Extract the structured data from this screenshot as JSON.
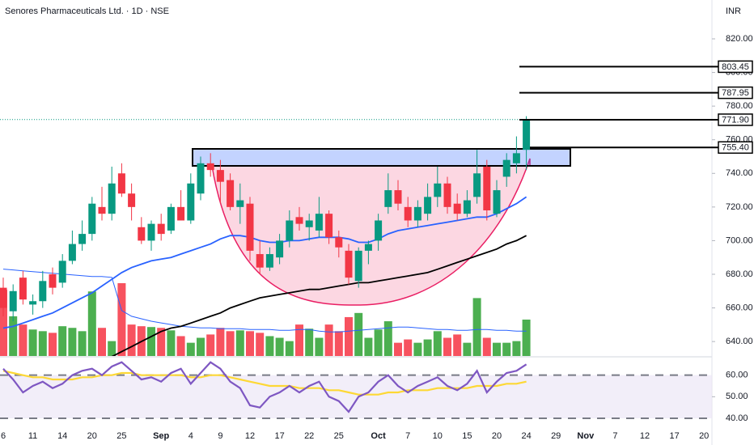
{
  "chart_data": {
    "type": "candlestick",
    "title": "Senores Pharmaceuticals Ltd. · 1D · NSE",
    "currency": "INR",
    "categories": [
      "6",
      null,
      null,
      "11",
      null,
      null,
      "14",
      null,
      null,
      "20",
      null,
      null,
      "25",
      null,
      null,
      null,
      "Sep",
      null,
      null,
      "4",
      null,
      null,
      "9",
      null,
      null,
      "12",
      null,
      null,
      "17",
      null,
      null,
      "22",
      null,
      null,
      "25",
      null,
      null,
      null,
      "Oct",
      null,
      null,
      "7",
      null,
      null,
      "10",
      null,
      null,
      "15",
      null,
      null,
      "20",
      null,
      null,
      "24",
      null,
      null,
      "29",
      null,
      null,
      "Nov",
      null,
      null,
      "7",
      null,
      null,
      "12",
      null,
      null,
      "17",
      null,
      null,
      "20"
    ],
    "candles": {
      "up_color": "#089981",
      "down_color": "#f23645",
      "open": [
        672,
        658,
        678,
        662,
        664,
        680,
        675,
        688,
        698,
        704,
        720,
        716,
        740,
        728,
        708,
        700,
        710,
        706,
        720,
        712,
        728,
        746,
        742,
        736,
        720,
        722,
        692,
        684,
        690,
        700,
        714,
        708,
        706,
        716,
        702,
        694,
        676,
        694,
        700,
        720,
        730,
        720,
        712,
        716,
        726,
        734,
        722,
        716,
        726,
        744,
        716,
        738,
        746,
        754,
        null,
        null,
        null,
        null,
        null,
        null,
        null,
        null,
        null,
        null,
        null,
        null,
        null,
        null,
        null,
        null,
        null,
        null
      ],
      "high": [
        678,
        674,
        682,
        668,
        682,
        684,
        692,
        706,
        712,
        726,
        732,
        744,
        746,
        734,
        714,
        712,
        716,
        722,
        730,
        740,
        750,
        752,
        748,
        740,
        734,
        726,
        700,
        696,
        704,
        718,
        720,
        716,
        726,
        718,
        706,
        698,
        696,
        700,
        716,
        740,
        736,
        726,
        724,
        734,
        744,
        738,
        728,
        730,
        754,
        748,
        736,
        752,
        762,
        774,
        null,
        null,
        null,
        null,
        null,
        null,
        null,
        null,
        null,
        null,
        null,
        null,
        null,
        null,
        null,
        null,
        null,
        null
      ],
      "low": [
        655,
        652,
        662,
        656,
        660,
        668,
        672,
        686,
        694,
        700,
        712,
        712,
        726,
        712,
        698,
        694,
        700,
        704,
        712,
        710,
        724,
        738,
        722,
        718,
        710,
        688,
        680,
        682,
        686,
        696,
        706,
        700,
        702,
        698,
        690,
        674,
        672,
        686,
        694,
        716,
        718,
        708,
        708,
        712,
        720,
        716,
        712,
        714,
        722,
        712,
        714,
        732,
        740,
        742,
        null,
        null,
        null,
        null,
        null,
        null,
        null,
        null,
        null,
        null,
        null,
        null,
        null,
        null,
        null,
        null,
        null,
        null
      ],
      "close": [
        660,
        670,
        665,
        664,
        676,
        672,
        688,
        698,
        704,
        722,
        716,
        734,
        728,
        720,
        700,
        710,
        704,
        720,
        712,
        734,
        746,
        742,
        735,
        720,
        724,
        694,
        684,
        692,
        700,
        712,
        710,
        712,
        716,
        702,
        696,
        678,
        694,
        698,
        712,
        730,
        722,
        712,
        720,
        726,
        734,
        720,
        716,
        724,
        740,
        718,
        730,
        748,
        752,
        772,
        null,
        null,
        null,
        null,
        null,
        null,
        null,
        null,
        null,
        null,
        null,
        null,
        null,
        null,
        null,
        null,
        null,
        null
      ]
    },
    "moving_averages": [
      {
        "color": "#2962ff",
        "values": [
          648,
          649,
          651,
          653,
          655,
          657,
          660,
          663,
          666,
          669,
          673,
          677,
          681,
          684,
          686,
          688,
          689,
          690,
          692,
          694,
          696,
          698,
          701,
          703,
          703,
          702,
          700,
          699,
          699,
          700,
          700,
          701,
          702,
          702,
          702,
          701,
          699,
          699,
          701,
          704,
          706,
          707,
          708,
          709,
          710,
          711,
          712,
          713,
          714,
          714,
          716,
          719,
          722,
          726,
          null,
          null,
          null,
          null,
          null,
          null,
          null,
          null,
          null,
          null,
          null,
          null,
          null,
          null,
          null,
          null,
          null,
          null
        ]
      },
      {
        "color": "#000000",
        "values": [
          null,
          null,
          null,
          null,
          null,
          null,
          null,
          null,
          null,
          null,
          null,
          631,
          634,
          637,
          640,
          643,
          646,
          648,
          649,
          651,
          653,
          655,
          657,
          660,
          662,
          664,
          666,
          667,
          668,
          669,
          670,
          671,
          671,
          672,
          673,
          674,
          675,
          675,
          676,
          677,
          678,
          679,
          680,
          681,
          683,
          685,
          687,
          689,
          691,
          693,
          695,
          698,
          700,
          703,
          null,
          null,
          null,
          null,
          null,
          null,
          null,
          null,
          null,
          null,
          null,
          null,
          null,
          null,
          null,
          null,
          null,
          null
        ]
      }
    ],
    "volume": {
      "up_color": "#4caf50",
      "down_color": "#f7525f",
      "values": [
        80,
        48,
        38,
        32,
        30,
        28,
        36,
        34,
        30,
        78,
        34,
        18,
        88,
        38,
        36,
        35,
        34,
        31,
        24,
        16,
        22,
        26,
        34,
        30,
        31,
        30,
        28,
        24,
        22,
        18,
        38,
        33,
        22,
        38,
        30,
        47,
        52,
        22,
        32,
        42,
        16,
        20,
        16,
        20,
        30,
        22,
        26,
        16,
        70,
        22,
        16,
        16,
        18,
        44,
        null,
        null,
        null,
        null,
        null,
        null,
        null,
        null,
        null,
        null,
        null,
        null,
        null,
        null,
        null,
        null,
        null,
        null
      ]
    },
    "volume_ma": {
      "color": "#2962ff",
      "values": [
        105,
        104,
        103,
        102,
        101,
        100,
        99,
        98,
        97,
        96,
        96,
        95,
        55,
        48,
        45,
        42,
        40,
        38,
        36,
        35,
        34,
        34,
        33,
        33,
        33,
        32,
        32,
        32,
        31,
        31,
        32,
        32,
        30,
        29,
        29,
        30,
        31,
        32,
        33,
        34,
        35,
        35,
        34,
        33,
        32,
        32,
        31,
        31,
        32,
        32,
        31,
        31,
        30,
        30,
        null,
        null,
        null,
        null,
        null,
        null,
        null,
        null,
        null,
        null,
        null,
        null,
        null,
        null,
        null,
        null,
        null,
        null
      ]
    },
    "ylim": [
      631.4,
      843.1
    ],
    "yticks": [
      {
        "value": 640,
        "label": "640.00"
      },
      {
        "value": 660,
        "label": "660.00"
      },
      {
        "value": 680,
        "label": "680.00"
      },
      {
        "value": 700,
        "label": "700.00"
      },
      {
        "value": 720,
        "label": "720.00"
      },
      {
        "value": 740,
        "label": "740.00"
      },
      {
        "value": 760,
        "label": "760.00"
      },
      {
        "value": 780,
        "label": "780.00"
      },
      {
        "value": 800,
        "label": "800.00"
      },
      {
        "value": 820,
        "label": "820.00"
      }
    ],
    "levels": [
      803.45,
      787.95,
      {
        "value": 771.9,
        "label": "771.90"
      },
      {
        "value": 755.4,
        "label": "755.40"
      }
    ],
    "rsi": {
      "color": "#7e57c2",
      "values": [
        63,
        58,
        52,
        55,
        57,
        54,
        56,
        60,
        62,
        63,
        60,
        64,
        66,
        62,
        58,
        59,
        57,
        61,
        63,
        56,
        61,
        66,
        63,
        57,
        54,
        46,
        45,
        50,
        52,
        55,
        52,
        55,
        57,
        50,
        48,
        43,
        50,
        52,
        57,
        60,
        55,
        52,
        55,
        57,
        59,
        55,
        53,
        56,
        62,
        52,
        57,
        61,
        62,
        65,
        null,
        null,
        null,
        null,
        null,
        null,
        null,
        null,
        null,
        null,
        null,
        null,
        null,
        null,
        null,
        null,
        null,
        null
      ],
      "ma": {
        "color": "#fdd835",
        "values": [
          62,
          61,
          60,
          59,
          59,
          58,
          58,
          58,
          59,
          59,
          60,
          60,
          61,
          61,
          60,
          60,
          60,
          60,
          60,
          59,
          59,
          60,
          60,
          59,
          58,
          57,
          56,
          55,
          55,
          55,
          54,
          54,
          54,
          53,
          53,
          52,
          51,
          51,
          51,
          52,
          52,
          53,
          53,
          53,
          54,
          54,
          54,
          54,
          55,
          55,
          55,
          56,
          56,
          57,
          null,
          null,
          null,
          null,
          null,
          null,
          null,
          null,
          null,
          null,
          null,
          null,
          null,
          null,
          null,
          null,
          null,
          null
        ]
      },
      "ylim": [
        34,
        67
      ],
      "yticks": [
        {
          "value": 40,
          "label": "40.00"
        },
        {
          "value": 50,
          "label": "50.00"
        },
        {
          "value": 60,
          "label": "60.00"
        }
      ]
    }
  }
}
